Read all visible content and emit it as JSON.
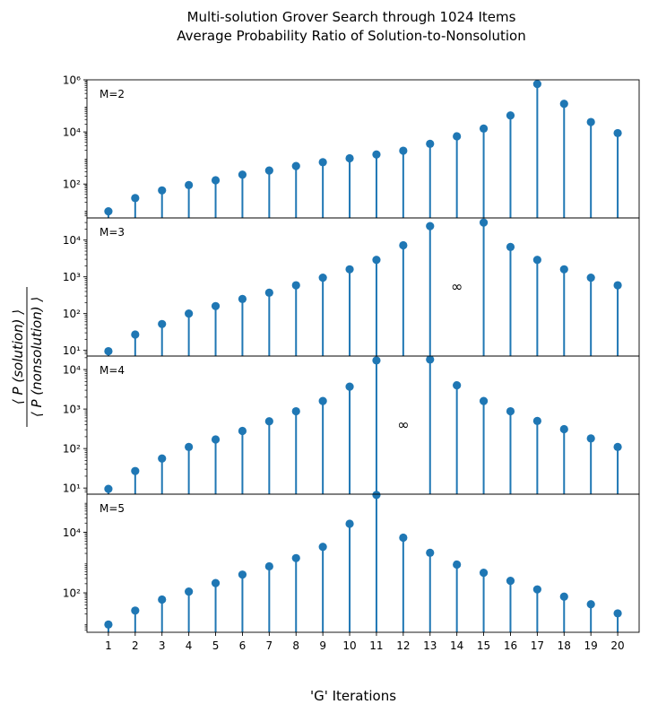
{
  "chart_data": {
    "type": "stem",
    "title": "Multi-solution Grover Search through 1024 Items",
    "subtitle": "Average Probability Ratio of Solution-to-Nonsolution",
    "xlabel": "'G' Iterations",
    "ylabel_numerator": "⟨ P (solution) ⟩",
    "ylabel_denominator": "⟨ P (nonsolution) ⟩",
    "yscale": "log",
    "x": [
      1,
      2,
      3,
      4,
      5,
      6,
      7,
      8,
      9,
      10,
      11,
      12,
      13,
      14,
      15,
      16,
      17,
      18,
      19,
      20
    ],
    "x_tick_labels": [
      "1",
      "2",
      "3",
      "4",
      "5",
      "6",
      "7",
      "8",
      "9",
      "10",
      "11",
      "12",
      "13",
      "14",
      "15",
      "16",
      "17",
      "18",
      "19",
      "20"
    ],
    "color": "#1f77b4",
    "panels": [
      {
        "label": "M=2",
        "ylim": [
          5,
          1000000
        ],
        "y_ticks": [
          {
            "value": 100,
            "label": "10²"
          },
          {
            "value": 10000,
            "label": "10⁴"
          },
          {
            "value": 1000000,
            "label": "10⁶"
          }
        ],
        "values": [
          9,
          29,
          57,
          91,
          140,
          230,
          330,
          490,
          690,
          970,
          1360,
          1900,
          3500,
          6800,
          13500,
          43000,
          690000,
          120000,
          24000,
          9000
        ]
      },
      {
        "label": "M=3",
        "ylim": [
          7,
          40000
        ],
        "y_ticks": [
          {
            "value": 10,
            "label": "10¹"
          },
          {
            "value": 100,
            "label": "10²"
          },
          {
            "value": 1000,
            "label": "10³"
          },
          {
            "value": 10000,
            "label": "10⁴"
          }
        ],
        "values": [
          9.5,
          27,
          52,
          100,
          160,
          250,
          370,
          590,
          950,
          1600,
          2900,
          7200,
          24000,
          null,
          30000,
          6500,
          2900,
          1600,
          950,
          590
        ],
        "annotations": [
          {
            "x": 14,
            "text": "∞"
          }
        ]
      },
      {
        "label": "M=4",
        "ylim": [
          7,
          22000
        ],
        "y_ticks": [
          {
            "value": 10,
            "label": "10¹"
          },
          {
            "value": 100,
            "label": "10²"
          },
          {
            "value": 1000,
            "label": "10³"
          },
          {
            "value": 10000,
            "label": "10⁴"
          }
        ],
        "values": [
          9.5,
          27,
          56,
          110,
          170,
          280,
          490,
          880,
          1600,
          3700,
          17000,
          null,
          18000,
          4000,
          1600,
          880,
          500,
          310,
          180,
          110
        ],
        "annotations": [
          {
            "x": 12,
            "text": "∞"
          }
        ]
      },
      {
        "label": "M=5",
        "ylim": [
          5,
          180000
        ],
        "y_ticks": [
          {
            "value": 100,
            "label": "10²"
          },
          {
            "value": 10000,
            "label": "10⁴"
          }
        ],
        "values": [
          9,
          26,
          60,
          110,
          210,
          400,
          750,
          1400,
          3300,
          19000,
          170000,
          6600,
          2100,
          860,
          460,
          250,
          130,
          75,
          42,
          21
        ]
      }
    ]
  }
}
